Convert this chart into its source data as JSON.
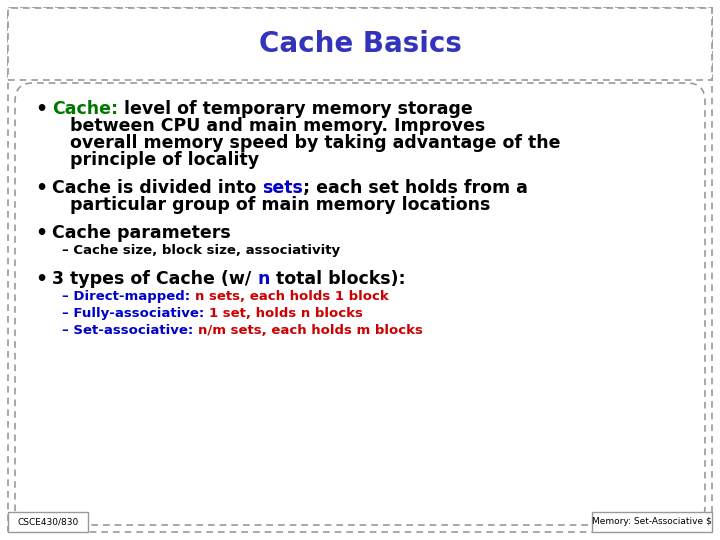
{
  "title": "Cache Basics",
  "title_color": "#3333bb",
  "background_color": "#ffffff",
  "border_color": "#999999",
  "green_color": "#007700",
  "blue_color": "#0000cc",
  "red_color": "#cc0000",
  "footer_left": "CSCE430/830",
  "footer_right": "Memory: Set-Associative $"
}
